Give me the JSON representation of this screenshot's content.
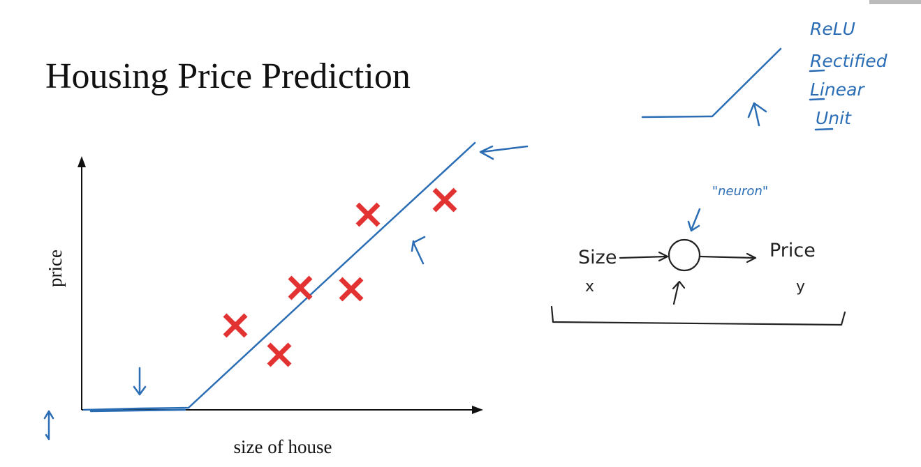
{
  "slide": {
    "title": "Housing Price Prediction",
    "plot": {
      "y_label": "price",
      "x_label": "size of house"
    },
    "relu_note": {
      "lines": [
        "ReLU",
        "Rectified",
        "Linear",
        "Unit"
      ]
    },
    "neuron_diagram": {
      "neuron_label": "\"neuron\"",
      "input": "Size",
      "input_symbol": "x",
      "output": "Price",
      "output_symbol": "y"
    }
  }
}
